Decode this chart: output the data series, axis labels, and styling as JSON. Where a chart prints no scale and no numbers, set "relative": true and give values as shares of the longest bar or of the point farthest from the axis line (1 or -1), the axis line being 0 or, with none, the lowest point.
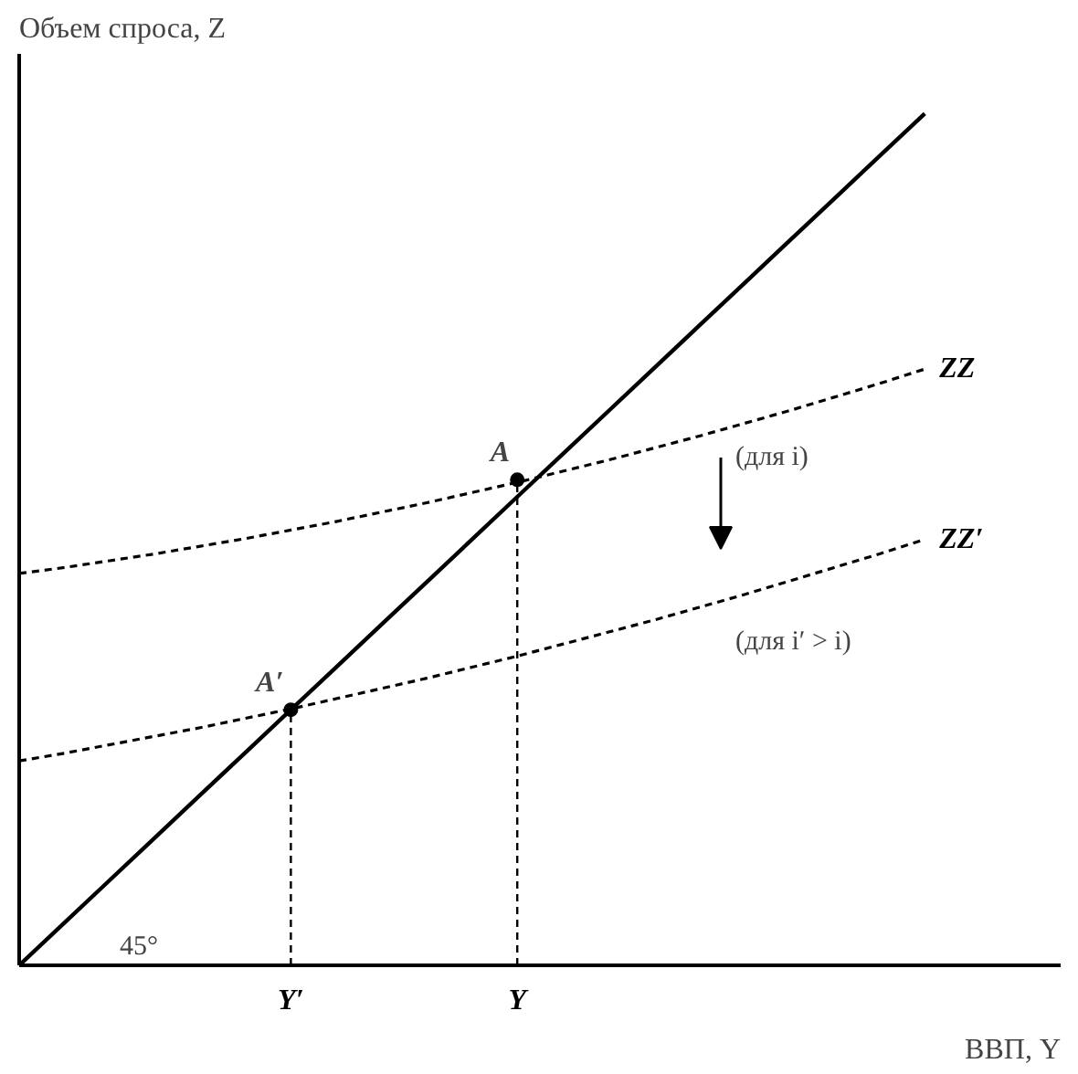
{
  "chart_data": {
    "type": "line",
    "relative": true,
    "xlabel": "ВВП, Y",
    "ylabel": "Объем спроса, Z",
    "tick_labels": "x",
    "grid": false,
    "legend": false,
    "categories": [
      null,
      null,
      null,
      null,
      null,
      null,
      "Y′",
      null,
      null,
      null,
      null,
      "Y",
      null,
      null,
      null,
      null,
      null,
      null,
      null,
      null,
      null,
      null,
      null,
      null
    ],
    "series": [
      {
        "color": "#000000",
        "line_style": "solid",
        "values": [
          0,
          0.05,
          0.1,
          0.15,
          0.2,
          0.25,
          0.3,
          0.35,
          0.4,
          0.45,
          0.5,
          0.55,
          0.6,
          0.65,
          0.7,
          0.75,
          0.8,
          0.85,
          0.9,
          0.95,
          1.0,
          null,
          null,
          null
        ]
      },
      {
        "name": "ZZ",
        "color": "#000000",
        "line_style": "dashed",
        "values": [
          0.46,
          0.467,
          0.475,
          0.483,
          0.492,
          0.501,
          0.511,
          0.521,
          0.532,
          0.543,
          0.555,
          0.567,
          0.58,
          0.593,
          0.607,
          0.621,
          0.636,
          0.651,
          0.667,
          0.683,
          0.7,
          null,
          null,
          null
        ]
      },
      {
        "name": "ZZ′",
        "color": "#000000",
        "line_style": "dashed",
        "values": [
          0.24,
          0.249,
          0.259,
          0.269,
          0.279,
          0.29,
          0.301,
          0.313,
          0.325,
          0.337,
          0.35,
          0.363,
          0.377,
          0.391,
          0.405,
          0.42,
          0.435,
          0.451,
          0.467,
          0.483,
          0.5,
          null,
          null,
          null
        ]
      },
      {
        "type": "scatter",
        "color": "#000000",
        "marker": "circle",
        "values": [
          null,
          null,
          null,
          null,
          null,
          null,
          0.3,
          null,
          null,
          null,
          null,
          0.57,
          null,
          null,
          null,
          null,
          null,
          null,
          null,
          null,
          null,
          null,
          null,
          null
        ]
      }
    ],
    "annotations": [
      "(для i)",
      "(для i′ > i)",
      {
        "text": "A",
        "x": "Y",
        "y": 0.57
      },
      {
        "text": "A′",
        "x": "Y′",
        "y": 0.3
      },
      "45°"
    ]
  }
}
